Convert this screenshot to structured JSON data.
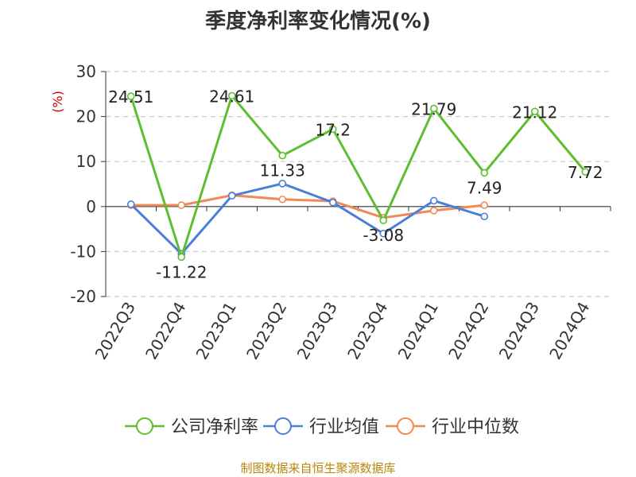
{
  "chart_data": {
    "type": "line",
    "title": "季度净利率变化情况(%)",
    "ylabel": "(%)",
    "xlabel": "",
    "categories": [
      "2022Q3",
      "2022Q4",
      "2023Q1",
      "2023Q2",
      "2023Q3",
      "2023Q4",
      "2024Q1",
      "2024Q2",
      "2024Q3",
      "2024Q4"
    ],
    "ylim": [
      -20,
      30
    ],
    "yticks": [
      30,
      20,
      10,
      0,
      -10,
      -20
    ],
    "grid": "horizontal dashed",
    "legend_position": "bottom",
    "series": [
      {
        "name": "公司净利率",
        "color": "#5dbf30",
        "values": [
          24.51,
          -11.22,
          24.61,
          11.33,
          17.2,
          -3.08,
          21.79,
          7.49,
          21.12,
          7.72
        ],
        "labels": [
          "24.51",
          "-11.22",
          "24.61",
          "11.33",
          "17.2",
          "-3.08",
          "21.79",
          "7.49",
          "21.12",
          "7.72"
        ]
      },
      {
        "name": "行业均值",
        "color": "#4a7ed9",
        "values": [
          0.5,
          -10.5,
          2.4,
          5.1,
          0.9,
          -6.0,
          1.3,
          -2.2,
          null,
          null
        ]
      },
      {
        "name": "行业中位数",
        "color": "#f08a54",
        "values": [
          0.3,
          0.3,
          2.5,
          1.6,
          1.2,
          -2.5,
          -0.9,
          0.3,
          null,
          null
        ]
      }
    ]
  },
  "footer": {
    "source": "制图数据来自恒生聚源数据库"
  }
}
